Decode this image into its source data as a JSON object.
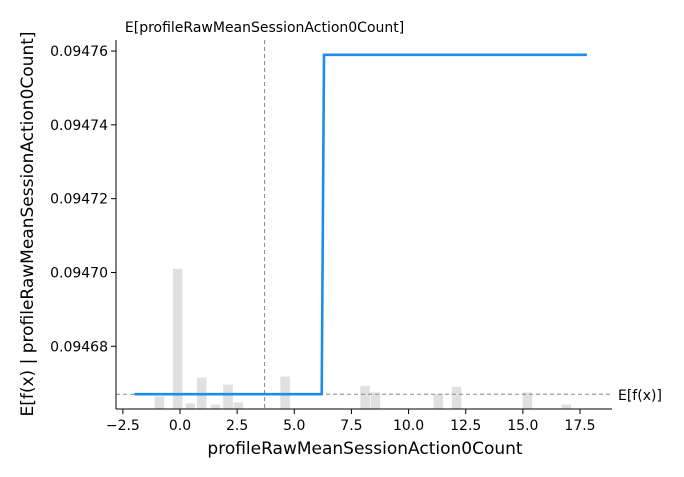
{
  "chart_data": {
    "type": "line",
    "title": "",
    "xlabel": "profileRawMeanSessionAction0Count",
    "ylabel": "E[f(x) | profileRawMeanSessionAction0Count]",
    "xlim": [
      -2.8,
      18.9
    ],
    "ylim": [
      0.094663,
      0.094763
    ],
    "x_ticks": [
      -2.5,
      0.0,
      2.5,
      5.0,
      7.5,
      10.0,
      12.5,
      15.0,
      17.5
    ],
    "x_tick_labels": [
      "−2.5",
      "0.0",
      "2.5",
      "5.0",
      "7.5",
      "10.0",
      "12.5",
      "15.0",
      "17.5"
    ],
    "y_ticks": [
      0.09468,
      0.0947,
      0.09472,
      0.09474,
      0.09476
    ],
    "y_tick_labels": [
      "0.09468",
      "0.09470",
      "0.09472",
      "0.09474",
      "0.09476"
    ],
    "grid": false,
    "series": [
      {
        "color": "#1f8ceb",
        "x": [
          -2.0,
          6.2,
          6.3,
          17.8
        ],
        "y": [
          0.094667,
          0.094667,
          0.094759,
          0.094759
        ]
      }
    ],
    "histogram": {
      "color": "#e0e0e0",
      "bin_width": 0.42,
      "bins": [
        {
          "x": -0.9,
          "frac": 0.034
        },
        {
          "x": -0.1,
          "frac": 0.38
        },
        {
          "x": 0.45,
          "frac": 0.015
        },
        {
          "x": 0.95,
          "frac": 0.085
        },
        {
          "x": 1.55,
          "frac": 0.012
        },
        {
          "x": 2.1,
          "frac": 0.066
        },
        {
          "x": 2.55,
          "frac": 0.018
        },
        {
          "x": 4.6,
          "frac": 0.088
        },
        {
          "x": 8.1,
          "frac": 0.063
        },
        {
          "x": 8.55,
          "frac": 0.045
        },
        {
          "x": 11.3,
          "frac": 0.04
        },
        {
          "x": 12.1,
          "frac": 0.06
        },
        {
          "x": 15.2,
          "frac": 0.045
        },
        {
          "x": 16.9,
          "frac": 0.012
        }
      ]
    },
    "reference_lines": {
      "vertical": {
        "x": 3.7,
        "label": "E[profileRawMeanSessionAction0Count]"
      },
      "horizontal": {
        "y": 0.094667,
        "label": "E[f(x)]"
      },
      "color": "#888888"
    }
  }
}
